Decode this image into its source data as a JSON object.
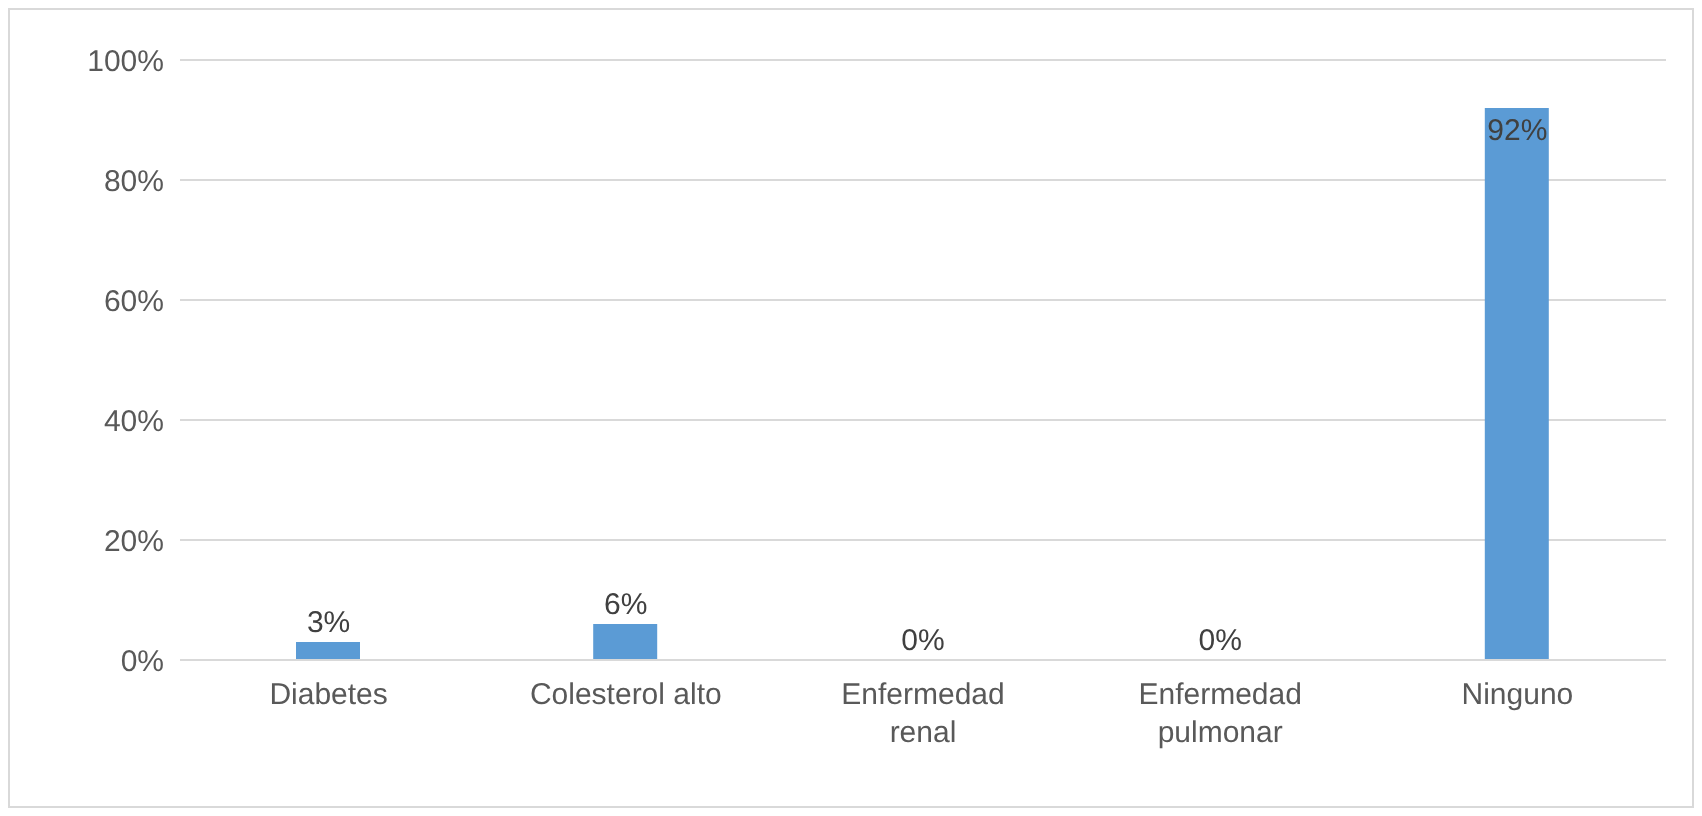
{
  "chart_data": {
    "type": "bar",
    "categories": [
      "Diabetes",
      "Colesterol alto",
      "Enfermedad renal",
      "Enfermedad pulmonar",
      "Ninguno"
    ],
    "values": [
      3,
      6,
      0,
      0,
      92
    ],
    "value_labels": [
      "3%",
      "6%",
      "0%",
      "0%",
      "92%"
    ],
    "color": "#5b9bd5",
    "ylim": [
      0,
      100
    ],
    "yticks": [
      {
        "value": 0,
        "label": "0%"
      },
      {
        "value": 20,
        "label": "20%"
      },
      {
        "value": 40,
        "label": "40%"
      },
      {
        "value": 60,
        "label": "60%"
      },
      {
        "value": 80,
        "label": "80%"
      },
      {
        "value": 100,
        "label": "100%"
      }
    ],
    "grid": "y"
  }
}
